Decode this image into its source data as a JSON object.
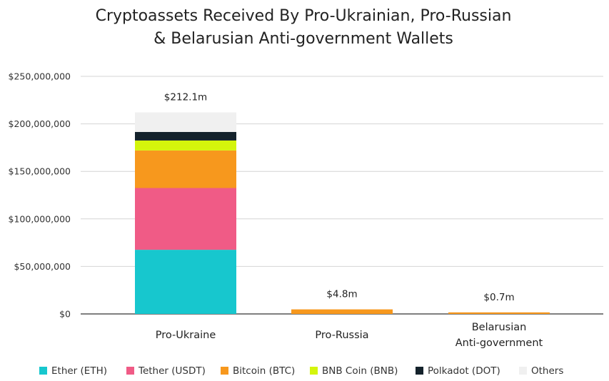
{
  "chart_data": {
    "type": "bar",
    "stacked": true,
    "title": [
      "Cryptoassets Received By Pro-Ukrainian, Pro-Russian",
      "& Belarusian Anti-government Wallets"
    ],
    "categories": [
      {
        "lines": [
          "Pro-Ukraine"
        ]
      },
      {
        "lines": [
          "Pro-Russia"
        ]
      },
      {
        "lines": [
          "Belarusian",
          "Anti-government"
        ]
      }
    ],
    "ylim": [
      0,
      250000000
    ],
    "yticks": [
      0,
      50000000,
      100000000,
      150000000,
      200000000,
      250000000
    ],
    "ytick_labels": [
      "$0",
      "$50,000,000",
      "$100,000,000",
      "$150,000,000",
      "$200,000,000",
      "$250,000,000"
    ],
    "grid": true,
    "legend_position": "bottom",
    "series": [
      {
        "name": "Ether (ETH)",
        "color": "#17c7ce",
        "values": [
          67500000,
          0,
          0
        ]
      },
      {
        "name": "Tether (USDT)",
        "color": "#f05b86",
        "values": [
          65000000,
          0,
          0
        ]
      },
      {
        "name": "Bitcoin (BTC)",
        "color": "#f7981d",
        "values": [
          39500000,
          4800000,
          700000
        ]
      },
      {
        "name": "BNB Coin (BNB)",
        "color": "#d4f50c",
        "values": [
          10500000,
          0,
          0
        ]
      },
      {
        "name": "Polkadot (DOT)",
        "color": "#14222b",
        "values": [
          9000000,
          0,
          0
        ]
      },
      {
        "name": "Others",
        "color": "#f0f0f0",
        "values": [
          20600000,
          0,
          0
        ]
      }
    ],
    "totals": [
      212100000,
      4800000,
      700000
    ],
    "total_labels": [
      "$212.1m",
      "$4.8m",
      "$0.7m"
    ]
  }
}
